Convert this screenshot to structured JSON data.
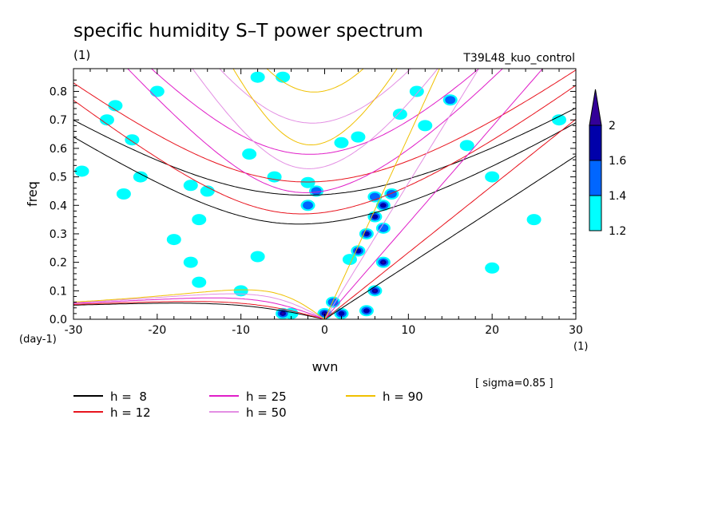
{
  "colors": {
    "cyan": "#00ffff",
    "blue": "#0066ff",
    "navy": "#0000aa",
    "indigo": "#330099",
    "h8": "#000000",
    "h12": "#e8141e",
    "h25": "#e01ec8",
    "h50": "#e38fe3",
    "h90": "#f0c000"
  },
  "chart_data": {
    "type": "heatmap",
    "title": "specific humidity S–T power spectrum",
    "subtitle_left": "(1)",
    "subtitle_right": "T39L48_kuo_control",
    "xlabel": "wvn",
    "ylabel": "freq",
    "x_unit": "(1)",
    "y_unit": "(day-1)",
    "note": "[ sigma=0.85 ]",
    "xlim": [
      -30,
      30
    ],
    "ylim": [
      0,
      0.88
    ],
    "x_ticks": [
      "-30",
      "-20",
      "-10",
      "0",
      "10",
      "20",
      "30"
    ],
    "y_ticks": [
      "0.0",
      "0.1",
      "0.2",
      "0.3",
      "0.4",
      "0.5",
      "0.6",
      "0.7",
      "0.8"
    ],
    "colorbar": {
      "levels": [
        "1.2",
        "1.4",
        "1.6",
        "2"
      ],
      "colors": [
        "#00ffff",
        "#0066ff",
        "#0000aa",
        "#330099"
      ]
    },
    "dispersion_curves": [
      {
        "label": "h =  8",
        "h": 8,
        "color": "#000000"
      },
      {
        "label": "h = 12",
        "h": 12,
        "color": "#e8141e"
      },
      {
        "label": "h = 25",
        "h": 25,
        "color": "#e01ec8"
      },
      {
        "label": "h = 50",
        "h": 50,
        "color": "#e38fe3"
      },
      {
        "label": "h = 90",
        "h": 90,
        "color": "#f0c000"
      }
    ],
    "spectral_features": [
      {
        "x": -20,
        "y": 0.8,
        "level": 1
      },
      {
        "x": -25,
        "y": 0.75,
        "level": 1
      },
      {
        "x": -26,
        "y": 0.7,
        "level": 1
      },
      {
        "x": -23,
        "y": 0.63,
        "level": 1
      },
      {
        "x": -29,
        "y": 0.52,
        "level": 1
      },
      {
        "x": -22,
        "y": 0.5,
        "level": 1
      },
      {
        "x": -16,
        "y": 0.47,
        "level": 1
      },
      {
        "x": -14,
        "y": 0.45,
        "level": 1
      },
      {
        "x": -24,
        "y": 0.44,
        "level": 1
      },
      {
        "x": -9,
        "y": 0.58,
        "level": 1
      },
      {
        "x": -6,
        "y": 0.5,
        "level": 1
      },
      {
        "x": -2,
        "y": 0.48,
        "level": 1
      },
      {
        "x": -1,
        "y": 0.45,
        "level": 2
      },
      {
        "x": -2,
        "y": 0.4,
        "level": 2
      },
      {
        "x": 2,
        "y": 0.62,
        "level": 1
      },
      {
        "x": 4,
        "y": 0.64,
        "level": 1
      },
      {
        "x": 9,
        "y": 0.72,
        "level": 1
      },
      {
        "x": 11,
        "y": 0.8,
        "level": 1
      },
      {
        "x": -8,
        "y": 0.85,
        "level": 1
      },
      {
        "x": -5,
        "y": 0.85,
        "level": 1
      },
      {
        "x": 15,
        "y": 0.77,
        "level": 2
      },
      {
        "x": 12,
        "y": 0.68,
        "level": 1
      },
      {
        "x": 20,
        "y": 0.5,
        "level": 1
      },
      {
        "x": 17,
        "y": 0.61,
        "level": 1
      },
      {
        "x": 6,
        "y": 0.43,
        "level": 2
      },
      {
        "x": 7,
        "y": 0.4,
        "level": 3
      },
      {
        "x": 8,
        "y": 0.44,
        "level": 2
      },
      {
        "x": 6,
        "y": 0.36,
        "level": 3
      },
      {
        "x": 7,
        "y": 0.32,
        "level": 2
      },
      {
        "x": 5,
        "y": 0.3,
        "level": 3
      },
      {
        "x": 4,
        "y": 0.24,
        "level": 3
      },
      {
        "x": 7,
        "y": 0.2,
        "level": 4
      },
      {
        "x": 6,
        "y": 0.1,
        "level": 4
      },
      {
        "x": 3,
        "y": 0.21,
        "level": 1
      },
      {
        "x": -15,
        "y": 0.35,
        "level": 1
      },
      {
        "x": -18,
        "y": 0.28,
        "level": 1
      },
      {
        "x": -8,
        "y": 0.22,
        "level": 1
      },
      {
        "x": -16,
        "y": 0.2,
        "level": 1
      },
      {
        "x": -10,
        "y": 0.1,
        "level": 1
      },
      {
        "x": -15,
        "y": 0.13,
        "level": 1
      },
      {
        "x": -4,
        "y": 0.02,
        "level": 1
      },
      {
        "x": -5,
        "y": 0.02,
        "level": 4
      },
      {
        "x": 0,
        "y": 0.02,
        "level": 4
      },
      {
        "x": 2,
        "y": 0.02,
        "level": 3
      },
      {
        "x": 5,
        "y": 0.03,
        "level": 3
      },
      {
        "x": 1,
        "y": 0.06,
        "level": 2
      },
      {
        "x": 25,
        "y": 0.35,
        "level": 1
      },
      {
        "x": 28,
        "y": 0.7,
        "level": 1
      },
      {
        "x": 20,
        "y": 0.18,
        "level": 1
      }
    ]
  }
}
